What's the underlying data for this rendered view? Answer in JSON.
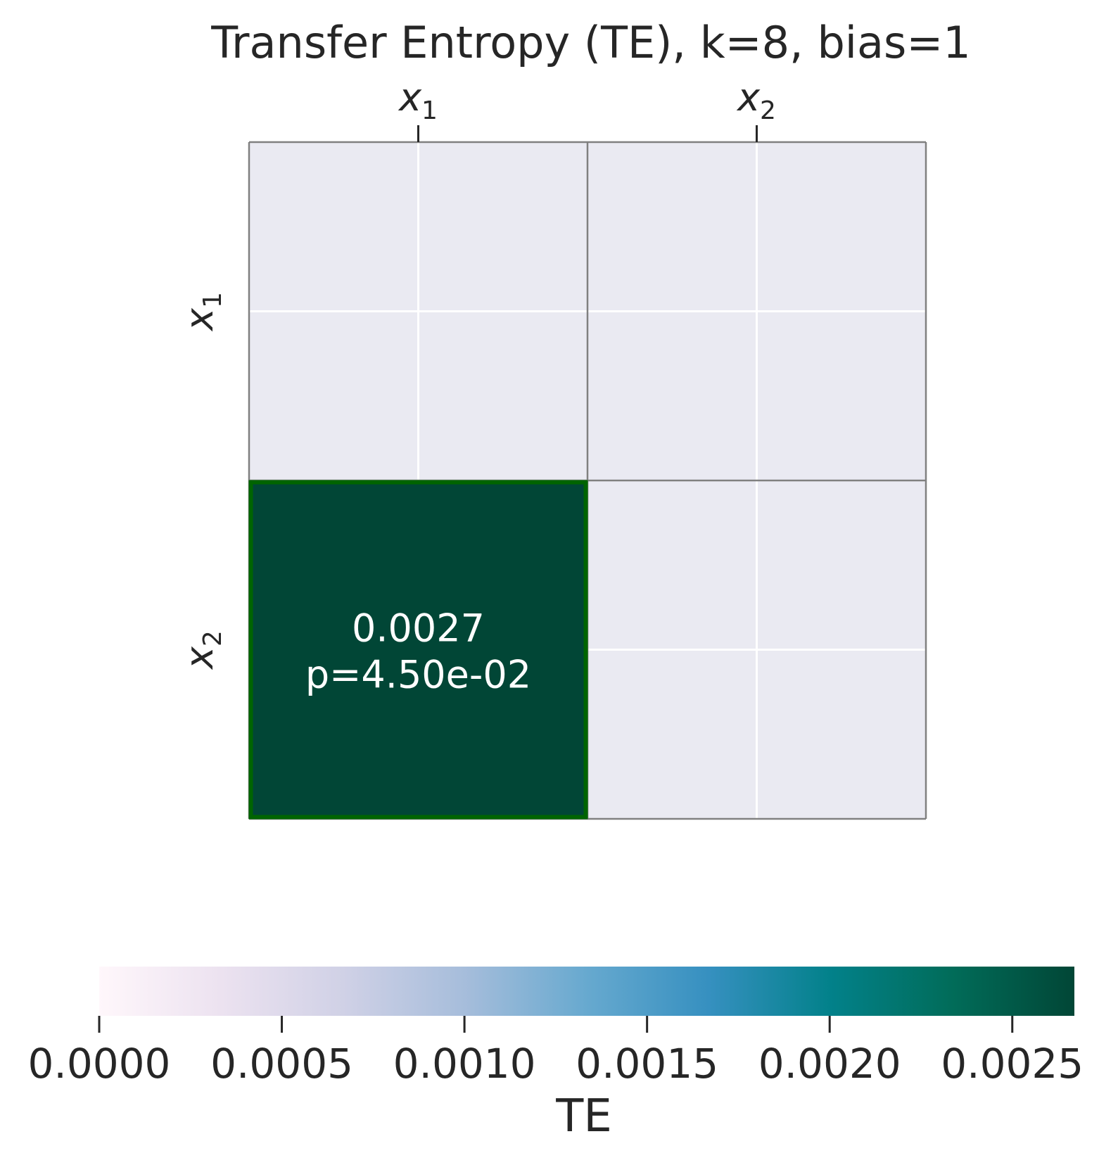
{
  "chart_data": {
    "type": "heatmap",
    "title": "Transfer Entropy (TE), k=8, bias=1",
    "x_categories": [
      {
        "base": "x",
        "sub": "1"
      },
      {
        "base": "x",
        "sub": "2"
      }
    ],
    "y_categories": [
      {
        "base": "x",
        "sub": "1"
      },
      {
        "base": "x",
        "sub": "2"
      }
    ],
    "cells": [
      {
        "row": 0,
        "col": 0,
        "value": null,
        "label": "",
        "pvalue_label": ""
      },
      {
        "row": 0,
        "col": 1,
        "value": null,
        "label": "",
        "pvalue_label": ""
      },
      {
        "row": 1,
        "col": 0,
        "value": 0.0027,
        "label": "0.0027",
        "pvalue_label": "p=4.50e-02",
        "highlighted": true
      },
      {
        "row": 1,
        "col": 1,
        "value": null,
        "label": "",
        "pvalue_label": ""
      }
    ],
    "colorbar": {
      "label": "TE",
      "min": 0.0,
      "max": 0.00267,
      "orientation": "horizontal",
      "ticks": [
        0.0,
        0.0005,
        0.001,
        0.0015,
        0.002,
        0.0025
      ],
      "tick_labels": [
        "0.0000",
        "0.0005",
        "0.0010",
        "0.0015",
        "0.0020",
        "0.0025"
      ],
      "colormap_stops": [
        "#fff7fb",
        "#ece2f0",
        "#d0d1e6",
        "#a6bddb",
        "#67a9cf",
        "#3690c0",
        "#02818a",
        "#016c59",
        "#014636"
      ]
    },
    "colors": {
      "empty_cell": "#eaeaf2",
      "grid": "#ffffff",
      "cell_border": "#808080",
      "highlight_border": "#006400",
      "annotation_text": "#ffffff"
    },
    "grid": true,
    "legend": "none"
  }
}
